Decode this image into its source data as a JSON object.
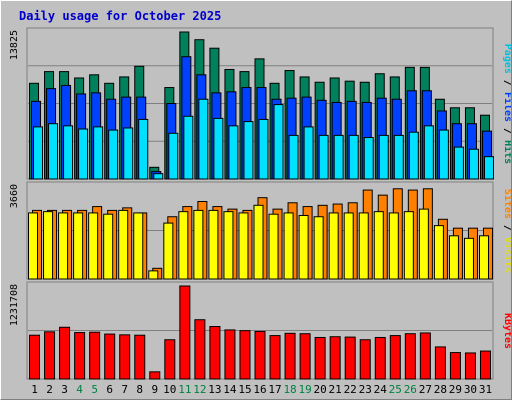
{
  "title": "Daily usage for October 2025",
  "colors": {
    "background": "#c0c0c0",
    "title": "#0000cc",
    "hits": "#00805c",
    "files": "#0040ff",
    "pages": "#00e0ff",
    "visits": "#ffff00",
    "sites": "#ff8000",
    "kbytes": "#ff0000",
    "weekend_label": "#008040",
    "weekday_label": "#000000",
    "grid": "#808080"
  },
  "chart_data": [
    {
      "type": "bar",
      "name": "hits-files-pages",
      "ymax_label": "13825",
      "legend": [
        {
          "text": "Pages",
          "color": "#00c0e0"
        },
        {
          "text": " / ",
          "color": "#000000"
        },
        {
          "text": "Files",
          "color": "#0040ff"
        },
        {
          "text": " / ",
          "color": "#000000"
        },
        {
          "text": "Hits",
          "color": "#00805c"
        }
      ],
      "categories": [
        "1",
        "2",
        "3",
        "4",
        "5",
        "6",
        "7",
        "8",
        "9",
        "10",
        "11",
        "12",
        "13",
        "14",
        "15",
        "16",
        "17",
        "18",
        "19",
        "20",
        "21",
        "22",
        "23",
        "24",
        "25",
        "26",
        "27",
        "28",
        "29",
        "30",
        "31"
      ],
      "ymax": 13825,
      "series": [
        {
          "key": "hits",
          "values": [
            9000,
            10100,
            10100,
            9500,
            9800,
            9000,
            9600,
            10600,
            1100,
            8600,
            13825,
            13100,
            12300,
            10300,
            10100,
            11300,
            9000,
            10200,
            9600,
            9100,
            9500,
            9200,
            9100,
            9900,
            9600,
            10500,
            10500,
            7500,
            6700,
            6700,
            6000
          ]
        },
        {
          "key": "files",
          "values": [
            7300,
            8500,
            8800,
            8000,
            8100,
            7500,
            7700,
            7700,
            700,
            7100,
            11500,
            9800,
            8100,
            8200,
            8600,
            8600,
            7500,
            7600,
            7700,
            7400,
            7200,
            7300,
            7200,
            7600,
            7500,
            8300,
            8300,
            6400,
            5200,
            5200,
            4500
          ]
        },
        {
          "key": "pages",
          "values": [
            4900,
            5200,
            5000,
            4700,
            4900,
            4600,
            4800,
            5600,
            500,
            4300,
            5900,
            7500,
            5700,
            5000,
            5400,
            5600,
            7000,
            4100,
            4900,
            4100,
            4100,
            4100,
            3900,
            4100,
            4100,
            4400,
            5000,
            4600,
            3000,
            2800,
            2100
          ]
        }
      ]
    },
    {
      "type": "bar",
      "name": "sites-visits",
      "ymax_label": "3660",
      "legend": [
        {
          "text": "Sites",
          "color": "#ff8000"
        },
        {
          "text": " / ",
          "color": "#000000"
        },
        {
          "text": "Visits",
          "color": "#e0e000"
        }
      ],
      "categories": [
        "1",
        "2",
        "3",
        "4",
        "5",
        "6",
        "7",
        "8",
        "9",
        "10",
        "11",
        "12",
        "13",
        "14",
        "15",
        "16",
        "17",
        "18",
        "19",
        "20",
        "21",
        "22",
        "23",
        "24",
        "25",
        "26",
        "27",
        "28",
        "29",
        "30",
        "31"
      ],
      "ymax": 3660,
      "series": [
        {
          "key": "sites",
          "values": [
            2700,
            2700,
            2700,
            2700,
            2850,
            2700,
            2800,
            2600,
            420,
            2450,
            2850,
            3050,
            2850,
            2750,
            2700,
            3200,
            2750,
            3000,
            2850,
            2900,
            2950,
            3000,
            3500,
            3300,
            3550,
            3500,
            3550,
            2350,
            2000,
            2000,
            2000
          ]
        },
        {
          "key": "visits",
          "values": [
            2600,
            2650,
            2600,
            2600,
            2600,
            2550,
            2700,
            2600,
            320,
            2200,
            2650,
            2700,
            2700,
            2650,
            2600,
            2900,
            2550,
            2600,
            2500,
            2450,
            2600,
            2600,
            2600,
            2650,
            2600,
            2650,
            2750,
            2100,
            1700,
            1600,
            1700
          ]
        }
      ]
    },
    {
      "type": "bar",
      "name": "kbytes",
      "ymax_label": "1231708",
      "legend": [
        {
          "text": "KBytes",
          "color": "#ff0000"
        }
      ],
      "categories": [
        "1",
        "2",
        "3",
        "4",
        "5",
        "6",
        "7",
        "8",
        "9",
        "10",
        "11",
        "12",
        "13",
        "14",
        "15",
        "16",
        "17",
        "18",
        "19",
        "20",
        "21",
        "22",
        "23",
        "24",
        "25",
        "26",
        "27",
        "28",
        "29",
        "30",
        "31"
      ],
      "ymax": 1231708,
      "series": [
        {
          "key": "kbytes",
          "values": [
            580000,
            625000,
            685000,
            615000,
            620000,
            595000,
            585000,
            580000,
            95000,
            520000,
            1231708,
            785000,
            695000,
            650000,
            640000,
            630000,
            575000,
            605000,
            600000,
            550000,
            560000,
            555000,
            520000,
            550000,
            575000,
            600000,
            610000,
            425000,
            350000,
            345000,
            370000
          ]
        }
      ]
    }
  ],
  "weekend_days": [
    4,
    5,
    11,
    12,
    18,
    19,
    25,
    26
  ]
}
